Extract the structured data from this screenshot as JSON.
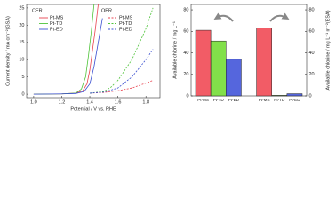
{
  "chart_data": [
    {
      "type": "line",
      "xlabel": "Potential / V vs. RHE",
      "ylabel": "Current density / mA cm⁻²(GSA)",
      "xlim": [
        0.95,
        1.9
      ],
      "xticks": [
        {
          "value": 1.0,
          "label": "1.0"
        },
        1.2,
        1.4,
        1.6,
        1.8
      ],
      "ylim": [
        -1,
        26
      ],
      "yticks": [
        0,
        5,
        10,
        15,
        20,
        25
      ],
      "groups": [
        {
          "title": "CER",
          "dash": "solid",
          "series": [
            {
              "name": "Pt-MS",
              "color": "#e8424f",
              "x": [
                1.0,
                1.2,
                1.3,
                1.35,
                1.38,
                1.4,
                1.42,
                1.44,
                1.46
              ],
              "values": [
                0,
                0.1,
                0.3,
                1,
                3,
                7,
                13,
                19,
                26
              ]
            },
            {
              "name": "Pt-TD",
              "color": "#4fc43a",
              "x": [
                1.0,
                1.2,
                1.3,
                1.34,
                1.37,
                1.39,
                1.41,
                1.43
              ],
              "values": [
                0,
                0.1,
                0.3,
                1.5,
                5,
                11,
                18,
                26
              ]
            },
            {
              "name": "Pt-ED",
              "color": "#3a4fd0",
              "x": [
                1.0,
                1.2,
                1.3,
                1.36,
                1.4,
                1.43,
                1.46,
                1.49
              ],
              "values": [
                0,
                0.1,
                0.2,
                0.8,
                3,
                8,
                15,
                22
              ]
            }
          ]
        },
        {
          "title": "OER",
          "dash": "dashed",
          "series": [
            {
              "name": "Pt-MS",
              "color": "#e8424f",
              "x": [
                1.4,
                1.5,
                1.6,
                1.7,
                1.8,
                1.85
              ],
              "values": [
                0.3,
                0.5,
                1,
                1.8,
                3.2,
                4
              ]
            },
            {
              "name": "Pt-TD",
              "color": "#4fc43a",
              "x": [
                1.4,
                1.5,
                1.55,
                1.6,
                1.7,
                1.8,
                1.85
              ],
              "values": [
                0.3,
                0.8,
                2,
                4,
                10,
                19,
                25
              ]
            },
            {
              "name": "Pt-ED",
              "color": "#3a4fd0",
              "x": [
                1.4,
                1.5,
                1.6,
                1.7,
                1.8,
                1.85
              ],
              "values": [
                0.3,
                0.6,
                1.8,
                5,
                10,
                13
              ]
            }
          ]
        }
      ]
    },
    {
      "type": "bar",
      "ylabel": "Available chlorine / mg L⁻¹",
      "y2label": "Available chlorine / mg L⁻¹ m⁻²(ESA)",
      "categories": [
        "Pt-MS",
        "Pt-TD",
        "Pt-ED",
        null,
        "Pt-MS",
        "Pt-TD",
        "Pt-ED"
      ],
      "colors": [
        "#f25c66",
        "#82e04a",
        "#5566dd",
        null,
        "#f25c66",
        "#82e04a",
        "#5566dd"
      ],
      "ylim": [
        0,
        85
      ],
      "yticks": [
        0,
        20,
        40,
        60,
        80
      ],
      "y2lim": [
        0,
        85
      ],
      "y2ticks": [
        0,
        20,
        40,
        60,
        80
      ],
      "series": [
        {
          "axis": "y",
          "values": [
            61,
            51,
            34,
            null,
            null,
            null,
            null
          ]
        },
        {
          "axis": "y2",
          "values": [
            null,
            null,
            null,
            null,
            63,
            0.5,
            2
          ]
        }
      ]
    }
  ]
}
